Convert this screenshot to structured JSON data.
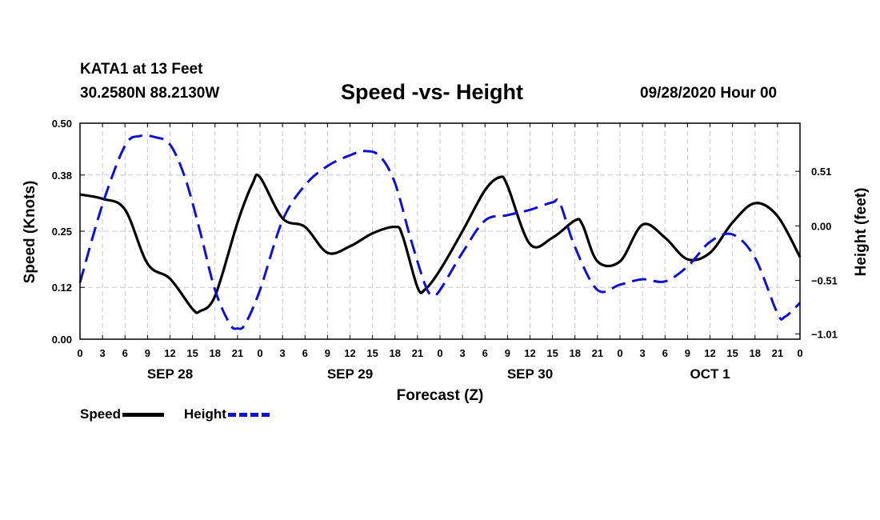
{
  "chart_data": {
    "type": "line",
    "station": "KATA1 at 13 Feet",
    "coords": "30.2580N 88.2130W",
    "title": "Speed -vs- Height",
    "datetime": "09/28/2020 Hour 00",
    "xlabel": "Forecast (Z)",
    "ylabel_left": "Speed (Knots)",
    "ylabel_right": "Height (feet)",
    "x_range": [
      0,
      96
    ],
    "x_tick_labels": [
      "0",
      "3",
      "6",
      "9",
      "12",
      "15",
      "18",
      "21",
      "0",
      "3",
      "6",
      "9",
      "12",
      "15",
      "18",
      "21",
      "0",
      "3",
      "6",
      "9",
      "12",
      "15",
      "18",
      "21",
      "0",
      "3",
      "6",
      "9",
      "12",
      "15",
      "18",
      "21",
      "0"
    ],
    "day_labels": [
      {
        "label": "SEP 28",
        "hour": 12
      },
      {
        "label": "SEP 29",
        "hour": 36
      },
      {
        "label": "SEP 30",
        "hour": 60
      },
      {
        "label": "OCT 1",
        "hour": 84
      }
    ],
    "left_axis": {
      "range": [
        0,
        0.5
      ],
      "ticks": [
        0.0,
        0.12,
        0.25,
        0.38,
        0.5
      ],
      "tick_labels": [
        "0.00",
        "0.12",
        "0.25",
        "0.38",
        "0.50"
      ]
    },
    "right_axis": {
      "range": [
        -1.06,
        0.96
      ],
      "ticks": [
        -1.01,
        -0.51,
        0.0,
        0.51
      ],
      "tick_labels": [
        "−1.01",
        "−0.51",
        "0.00",
        "0.51"
      ]
    },
    "grid": true,
    "series": [
      {
        "name": "Speed",
        "axis": "left",
        "color": "#000000",
        "style": "solid",
        "points": [
          [
            0,
            0.335
          ],
          [
            3,
            0.325
          ],
          [
            6,
            0.3
          ],
          [
            9,
            0.175
          ],
          [
            12,
            0.14
          ],
          [
            15,
            0.07
          ],
          [
            16,
            0.065
          ],
          [
            18,
            0.1
          ],
          [
            21,
            0.27
          ],
          [
            23,
            0.36
          ],
          [
            24,
            0.375
          ],
          [
            27,
            0.28
          ],
          [
            30,
            0.26
          ],
          [
            33,
            0.2
          ],
          [
            36,
            0.215
          ],
          [
            39,
            0.245
          ],
          [
            42,
            0.26
          ],
          [
            43,
            0.24
          ],
          [
            45,
            0.12
          ],
          [
            46,
            0.115
          ],
          [
            48,
            0.16
          ],
          [
            51,
            0.25
          ],
          [
            54,
            0.345
          ],
          [
            56,
            0.375
          ],
          [
            57,
            0.355
          ],
          [
            60,
            0.22
          ],
          [
            63,
            0.235
          ],
          [
            66,
            0.275
          ],
          [
            67,
            0.265
          ],
          [
            69,
            0.18
          ],
          [
            72,
            0.18
          ],
          [
            75,
            0.265
          ],
          [
            78,
            0.235
          ],
          [
            81,
            0.185
          ],
          [
            84,
            0.2
          ],
          [
            87,
            0.27
          ],
          [
            90,
            0.315
          ],
          [
            93,
            0.285
          ],
          [
            96,
            0.19
          ]
        ]
      },
      {
        "name": "Height",
        "axis": "right",
        "color": "#1010d0",
        "style": "dashed",
        "points": [
          [
            0,
            -0.53
          ],
          [
            3,
            0.2
          ],
          [
            6,
            0.75
          ],
          [
            8,
            0.84
          ],
          [
            10,
            0.83
          ],
          [
            12,
            0.76
          ],
          [
            14,
            0.45
          ],
          [
            16,
            -0.05
          ],
          [
            18,
            -0.6
          ],
          [
            20,
            -0.92
          ],
          [
            21,
            -0.96
          ],
          [
            22,
            -0.92
          ],
          [
            24,
            -0.6
          ],
          [
            27,
            0.05
          ],
          [
            30,
            0.38
          ],
          [
            33,
            0.56
          ],
          [
            36,
            0.66
          ],
          [
            38,
            0.7
          ],
          [
            40,
            0.65
          ],
          [
            42,
            0.4
          ],
          [
            44,
            -0.1
          ],
          [
            46,
            -0.55
          ],
          [
            47,
            -0.65
          ],
          [
            48,
            -0.6
          ],
          [
            51,
            -0.25
          ],
          [
            54,
            0.05
          ],
          [
            57,
            0.1
          ],
          [
            60,
            0.15
          ],
          [
            63,
            0.22
          ],
          [
            64,
            0.21
          ],
          [
            66,
            -0.2
          ],
          [
            69,
            -0.6
          ],
          [
            72,
            -0.55
          ],
          [
            75,
            -0.5
          ],
          [
            78,
            -0.52
          ],
          [
            81,
            -0.38
          ],
          [
            84,
            -0.15
          ],
          [
            87,
            -0.08
          ],
          [
            90,
            -0.3
          ],
          [
            93,
            -0.82
          ],
          [
            94,
            -0.85
          ],
          [
            96,
            -0.72
          ]
        ]
      }
    ]
  }
}
